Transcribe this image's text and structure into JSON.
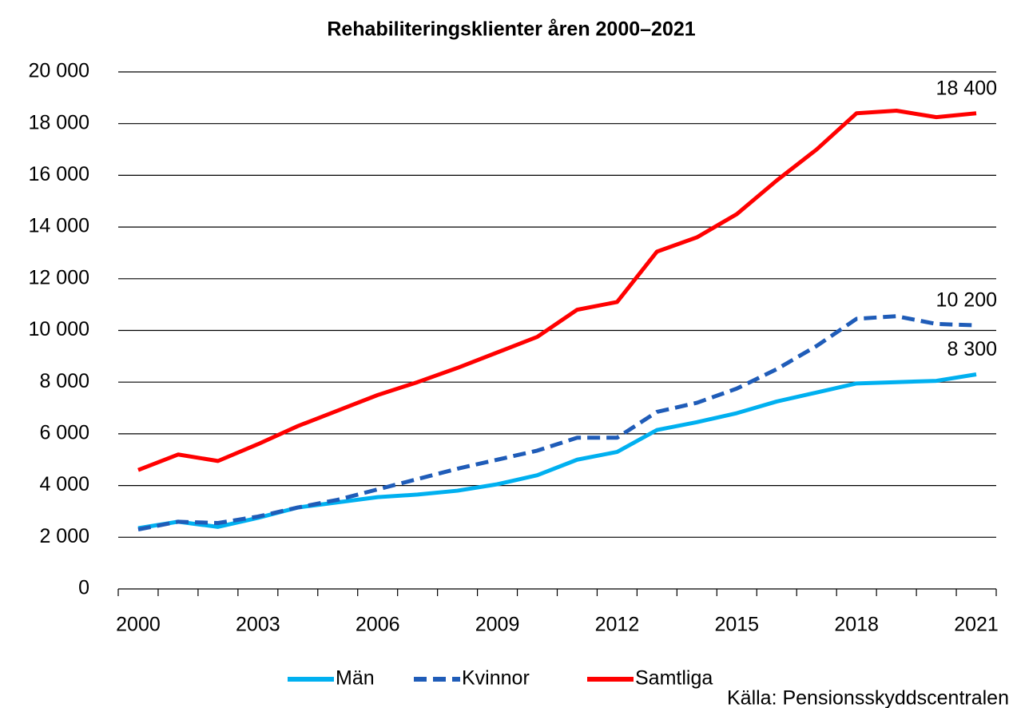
{
  "chart_data": {
    "type": "line",
    "title": "Rehabiliteringsklienter åren 2000–2021",
    "source": "Källa: Pensionsskyddscentralen",
    "categories": [
      "2000",
      null,
      null,
      "2003",
      null,
      null,
      "2006",
      null,
      null,
      "2009",
      null,
      null,
      "2012",
      null,
      null,
      "2015",
      null,
      null,
      "2018",
      null,
      null,
      "2021"
    ],
    "series": [
      {
        "name": "Män",
        "color": "#00b0f0",
        "dashed": false,
        "values": [
          2350,
          2600,
          2400,
          2750,
          3150,
          3350,
          3550,
          3650,
          3800,
          4050,
          4400,
          5000,
          5300,
          6150,
          6450,
          6800,
          7250,
          7600,
          7950,
          8000,
          8050,
          8300
        ],
        "value_labels": [
          null,
          null,
          null,
          null,
          null,
          null,
          null,
          null,
          null,
          null,
          null,
          null,
          null,
          null,
          null,
          null,
          null,
          null,
          null,
          null,
          null,
          "8 300"
        ]
      },
      {
        "name": "Kvinnor",
        "color": "#1f5cb8",
        "dashed": true,
        "values": [
          2300,
          2600,
          2550,
          2800,
          3150,
          3450,
          3850,
          4250,
          4650,
          5000,
          5350,
          5850,
          5850,
          6850,
          7200,
          7750,
          8500,
          9400,
          10450,
          10550,
          10250,
          10200
        ],
        "value_labels": [
          null,
          null,
          null,
          null,
          null,
          null,
          null,
          null,
          null,
          null,
          null,
          null,
          null,
          null,
          null,
          null,
          null,
          null,
          null,
          null,
          null,
          "10 200"
        ]
      },
      {
        "name": "Samtliga",
        "color": "#ff0000",
        "dashed": false,
        "values": [
          4600,
          5200,
          4950,
          5600,
          6300,
          6900,
          7500,
          8000,
          8550,
          9150,
          9750,
          10800,
          11100,
          13050,
          13600,
          14500,
          15800,
          17000,
          18400,
          18500,
          18250,
          18400
        ],
        "value_labels": [
          null,
          null,
          null,
          null,
          null,
          null,
          null,
          null,
          null,
          null,
          null,
          null,
          null,
          null,
          null,
          null,
          null,
          null,
          null,
          null,
          null,
          "18 400"
        ]
      }
    ],
    "ylim": [
      0,
      20000
    ],
    "yticks": [
      0,
      {
        "value": 2000,
        "label": "2 000"
      },
      {
        "value": 4000,
        "label": "4 000"
      },
      {
        "value": 6000,
        "label": "6 000"
      },
      {
        "value": 8000,
        "label": "8 000"
      },
      {
        "value": 10000,
        "label": "10 000"
      },
      {
        "value": 12000,
        "label": "12 000"
      },
      {
        "value": 14000,
        "label": "14 000"
      },
      {
        "value": 16000,
        "label": "16 000"
      },
      {
        "value": 18000,
        "label": "18 000"
      },
      {
        "value": 20000,
        "label": "20 000"
      }
    ],
    "grid": true,
    "legend": "bottom"
  }
}
